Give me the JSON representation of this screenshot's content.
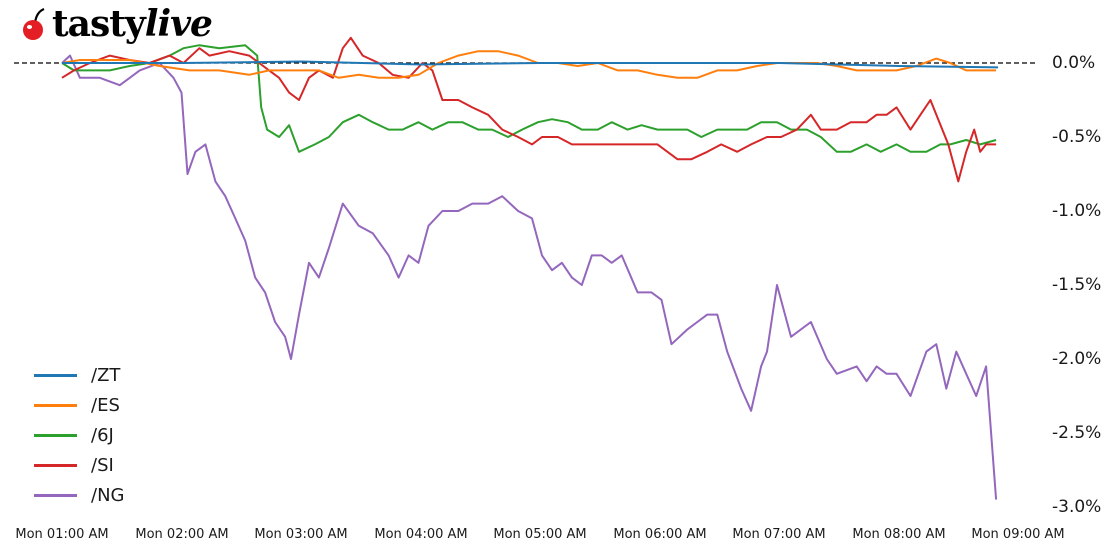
{
  "brand": {
    "name_part1": "tasty",
    "name_part2": "live",
    "icon": "cherry-icon",
    "icon_color": "#e31e24"
  },
  "chart_data": {
    "type": "line",
    "title": "",
    "xlabel": "",
    "ylabel": "",
    "x_ticks": [
      "Mon 01:00 AM",
      "Mon 02:00 AM",
      "Mon 03:00 AM",
      "Mon 04:00 AM",
      "Mon 05:00 AM",
      "Mon 06:00 AM",
      "Mon 07:00 AM",
      "Mon 08:00 AM",
      "Mon 09:00 AM"
    ],
    "y_ticks": [
      "0.0%",
      "-0.5%",
      "-1.0%",
      "-1.5%",
      "-2.0%",
      "-2.5%",
      "-3.0%"
    ],
    "ylim": [
      -3.0,
      0.2
    ],
    "y_axis_position": "right",
    "reference_line": {
      "value": 0.0,
      "style": "dashed",
      "color": "#000000"
    },
    "legend_position": "lower left",
    "grid": false,
    "x_unit": "minutes since Mon 01:00 AM",
    "series": [
      {
        "name": "/ZT",
        "color": "#1f77b4",
        "x": [
          0,
          60,
          120,
          180,
          240,
          300,
          360,
          420,
          470
        ],
        "values": [
          0.0,
          0.0,
          0.01,
          -0.01,
          0.0,
          0.0,
          0.0,
          -0.02,
          -0.03
        ]
      },
      {
        "name": "/ES",
        "color": "#ff7f0e",
        "x": [
          0,
          9,
          19,
          34,
          49,
          64,
          79,
          94,
          104,
          119,
          129,
          139,
          149,
          159,
          169,
          179,
          189,
          199,
          209,
          219,
          229,
          239,
          249,
          259,
          269,
          279,
          289,
          299,
          309,
          319,
          329,
          339,
          349,
          359,
          369,
          379,
          389,
          399,
          409,
          419,
          429,
          439,
          446,
          454,
          461,
          469
        ],
        "values": [
          0.0,
          0.02,
          0.02,
          0.02,
          -0.02,
          -0.05,
          -0.05,
          -0.08,
          -0.05,
          -0.05,
          -0.05,
          -0.1,
          -0.08,
          -0.1,
          -0.1,
          -0.08,
          0.0,
          0.05,
          0.08,
          0.08,
          0.05,
          0.0,
          0.0,
          -0.02,
          0.0,
          -0.05,
          -0.05,
          -0.08,
          -0.1,
          -0.1,
          -0.05,
          -0.05,
          -0.02,
          0.0,
          0.0,
          0.0,
          -0.02,
          -0.05,
          -0.05,
          -0.05,
          -0.02,
          0.03,
          0.0,
          -0.05,
          -0.05,
          -0.05
        ]
      },
      {
        "name": "/6J",
        "color": "#2ca02c",
        "x": [
          0,
          6,
          14,
          24,
          34,
          44,
          54,
          61,
          69,
          79,
          92,
          98,
          100,
          103,
          109,
          114,
          119,
          127,
          134,
          141,
          149,
          156,
          164,
          171,
          179,
          186,
          194,
          201,
          209,
          216,
          224,
          231,
          239,
          246,
          254,
          261,
          269,
          276,
          284,
          291,
          299,
          306,
          314,
          321,
          329,
          336,
          344,
          351,
          359,
          366,
          374,
          381,
          389,
          396,
          404,
          411,
          419,
          426,
          434,
          441,
          446,
          454,
          461,
          469
        ],
        "values": [
          0.0,
          -0.05,
          -0.05,
          -0.05,
          -0.02,
          0.0,
          0.05,
          0.1,
          0.12,
          0.1,
          0.12,
          0.05,
          -0.3,
          -0.45,
          -0.5,
          -0.42,
          -0.6,
          -0.55,
          -0.5,
          -0.4,
          -0.35,
          -0.4,
          -0.45,
          -0.45,
          -0.4,
          -0.45,
          -0.4,
          -0.4,
          -0.45,
          -0.45,
          -0.5,
          -0.45,
          -0.4,
          -0.38,
          -0.4,
          -0.45,
          -0.45,
          -0.4,
          -0.45,
          -0.42,
          -0.45,
          -0.45,
          -0.45,
          -0.5,
          -0.45,
          -0.45,
          -0.45,
          -0.4,
          -0.4,
          -0.45,
          -0.45,
          -0.5,
          -0.6,
          -0.6,
          -0.55,
          -0.6,
          -0.55,
          -0.6,
          -0.6,
          -0.55,
          -0.55,
          -0.52,
          -0.55,
          -0.52
        ]
      },
      {
        "name": "/SI",
        "color": "#d62728",
        "x": [
          0,
          6,
          14,
          24,
          34,
          44,
          54,
          61,
          69,
          74,
          84,
          94,
          99,
          104,
          109,
          114,
          119,
          124,
          129,
          136,
          141,
          145,
          151,
          159,
          166,
          174,
          181,
          186,
          191,
          199,
          206,
          214,
          221,
          229,
          236,
          241,
          249,
          256,
          264,
          271,
          279,
          289,
          299,
          309,
          316,
          324,
          331,
          339,
          346,
          354,
          361,
          369,
          376,
          381,
          389,
          396,
          404,
          409,
          414,
          419,
          426,
          431,
          436,
          445,
          450,
          454,
          458,
          461,
          464,
          469
        ],
        "values": [
          -0.1,
          -0.05,
          0.0,
          0.05,
          0.02,
          0.0,
          0.05,
          0.0,
          0.1,
          0.05,
          0.08,
          0.05,
          0.0,
          -0.05,
          -0.1,
          -0.2,
          -0.25,
          -0.1,
          -0.05,
          -0.1,
          0.1,
          0.17,
          0.05,
          0.0,
          -0.08,
          -0.1,
          0.0,
          -0.05,
          -0.25,
          -0.25,
          -0.3,
          -0.35,
          -0.45,
          -0.5,
          -0.55,
          -0.5,
          -0.5,
          -0.55,
          -0.55,
          -0.55,
          -0.55,
          -0.55,
          -0.55,
          -0.65,
          -0.65,
          -0.6,
          -0.55,
          -0.6,
          -0.55,
          -0.5,
          -0.5,
          -0.45,
          -0.35,
          -0.45,
          -0.45,
          -0.4,
          -0.4,
          -0.35,
          -0.35,
          -0.3,
          -0.45,
          -0.35,
          -0.25,
          -0.55,
          -0.8,
          -0.6,
          -0.45,
          -0.6,
          -0.55,
          -0.55
        ]
      },
      {
        "name": "/NG",
        "color": "#9467bd",
        "x": [
          0,
          4,
          9,
          19,
          29,
          39,
          49,
          56,
          60,
          63,
          67,
          72,
          77,
          82,
          87,
          92,
          97,
          102,
          107,
          112,
          115,
          119,
          124,
          129,
          134,
          141,
          149,
          156,
          164,
          169,
          174,
          179,
          184,
          191,
          199,
          206,
          214,
          221,
          229,
          236,
          241,
          246,
          251,
          256,
          261,
          266,
          271,
          276,
          281,
          289,
          296,
          301,
          306,
          314,
          319,
          324,
          329,
          334,
          341,
          346,
          351,
          354,
          359,
          366,
          376,
          384,
          389,
          399,
          404,
          409,
          414,
          419,
          426,
          434,
          439,
          444,
          449,
          454,
          459,
          464,
          469
        ],
        "values": [
          0.0,
          0.05,
          -0.1,
          -0.1,
          -0.15,
          -0.05,
          0.0,
          -0.1,
          -0.2,
          -0.75,
          -0.6,
          -0.55,
          -0.8,
          -0.9,
          -1.05,
          -1.2,
          -1.45,
          -1.55,
          -1.75,
          -1.85,
          -2.0,
          -1.7,
          -1.35,
          -1.45,
          -1.25,
          -0.95,
          -1.1,
          -1.15,
          -1.3,
          -1.45,
          -1.3,
          -1.35,
          -1.1,
          -1.0,
          -1.0,
          -0.95,
          -0.95,
          -0.9,
          -1.0,
          -1.05,
          -1.3,
          -1.4,
          -1.35,
          -1.45,
          -1.5,
          -1.3,
          -1.3,
          -1.35,
          -1.3,
          -1.55,
          -1.55,
          -1.6,
          -1.9,
          -1.8,
          -1.75,
          -1.7,
          -1.7,
          -1.95,
          -2.2,
          -2.35,
          -2.05,
          -1.95,
          -1.5,
          -1.85,
          -1.75,
          -2.0,
          -2.1,
          -2.05,
          -2.15,
          -2.05,
          -2.1,
          -2.1,
          -2.25,
          -1.95,
          -1.9,
          -2.2,
          -1.95,
          -2.1,
          -2.25,
          -2.05,
          -2.95
        ]
      }
    ]
  }
}
